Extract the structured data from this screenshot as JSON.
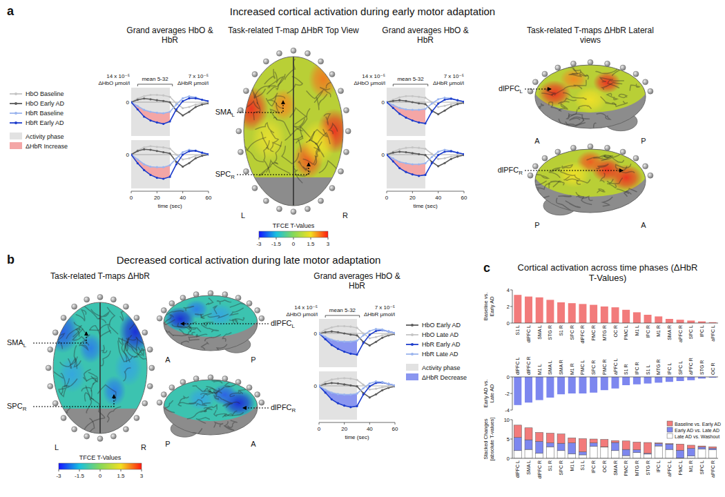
{
  "panels": {
    "a": {
      "letter": "a",
      "title": "Increased cortical activation during early motor adaptation",
      "headings": [
        "Grand averages HbO & HbR",
        "Task-related T-map ΔHbR Top View",
        "Grand averages HbO & HbR",
        "Task-related T-maps ΔHbR Lateral views"
      ],
      "top_view": {
        "labels": [
          {
            "text": "SMA",
            "sub": "L"
          },
          {
            "text": "SPC",
            "sub": "R"
          }
        ],
        "left": "L",
        "right": "R"
      },
      "lateral_views": [
        {
          "label": {
            "text": "dlPFC",
            "sub": "L"
          },
          "front": "A",
          "back": "P"
        },
        {
          "label": {
            "text": "dlPFC",
            "sub": "R"
          },
          "front": "A",
          "back": "P"
        }
      ],
      "colorbar": {
        "label": "TFCE T-Values",
        "range": [
          -3,
          3
        ],
        "ticks": [
          -3,
          -1.5,
          0,
          1.5,
          3
        ]
      }
    },
    "b": {
      "letter": "b",
      "title": "Decreased cortical activation during late motor adaptation",
      "headings": [
        "Task-related T-maps ΔHbR",
        "Grand averages HbO & HbR"
      ],
      "top_view": {
        "labels": [
          {
            "text": "SMA",
            "sub": "L"
          },
          {
            "text": "SPC",
            "sub": "R"
          }
        ],
        "left": "L",
        "right": "R"
      },
      "lateral_views": [
        {
          "label": {
            "text": "dlPFC",
            "sub": "L"
          },
          "front": "A",
          "back": "P"
        },
        {
          "label": {
            "text": "dlPFC",
            "sub": "R"
          },
          "front": "A",
          "back": "P"
        }
      ],
      "colorbar": {
        "label": "TFCE T-Values",
        "range": [
          -3,
          3
        ],
        "ticks": [
          -3,
          -1.5,
          0,
          1.5,
          3
        ]
      }
    },
    "c": {
      "letter": "c",
      "title": "Cortical activation across time phases (ΔHbR T-Values)"
    }
  },
  "chart_data": [
    {
      "type": "line",
      "x": [
        0,
        5,
        10,
        15,
        20,
        25,
        30,
        35,
        40,
        45,
        50,
        55,
        60
      ],
      "xlim": [
        0,
        60
      ],
      "ylim": [
        -14,
        6
      ],
      "yticks": [
        0
      ],
      "y2lim": [
        -7,
        3
      ],
      "ylabel": "14 x 10⁻⁵ ΔHbO μmol/l",
      "y2label": "7 x 10⁻⁵ ΔHbR μmol/l",
      "mean_window": [
        5,
        32
      ],
      "mean_label": "mean 5-32",
      "activity_phase": [
        0,
        30
      ],
      "fill_color": "#f4a6a6",
      "phase_label": "Activity phase",
      "fill_label": "ΔHbR Increase",
      "legend": "left",
      "series": [
        {
          "name": "HbO Baseline",
          "color": "#c4c4c4",
          "values": [
            0,
            1.5,
            2.5,
            3,
            3,
            2.8,
            2.2,
            -0.5,
            -2.5,
            -2,
            -1,
            -0.5,
            0
          ]
        },
        {
          "name": "HbO Early AD",
          "color": "#5a5a5a",
          "values": [
            0,
            1,
            1.5,
            1.2,
            0.8,
            0.5,
            0,
            -3.5,
            -5.5,
            -4,
            -2,
            -1,
            -0.5
          ]
        },
        {
          "name": "HbR Baseline",
          "color": "#9ab4ee",
          "axis": "y2",
          "values": [
            0,
            -0.8,
            -1.6,
            -2,
            -2.2,
            -2.3,
            -2,
            -0.5,
            0.8,
            1.2,
            1,
            0.5,
            0.2
          ]
        },
        {
          "name": "HbR Early AD",
          "color": "#1c3ccc",
          "axis": "y2",
          "values": [
            0,
            -1.5,
            -3,
            -3.8,
            -4.2,
            -4.5,
            -4,
            -1.5,
            0.2,
            0.8,
            0.8,
            0.5,
            0.2
          ]
        }
      ]
    },
    {
      "type": "line",
      "x": [
        0,
        5,
        10,
        15,
        20,
        25,
        30,
        35,
        40,
        45,
        50,
        55,
        60
      ],
      "xlim": [
        0,
        60
      ],
      "xticks": [
        0,
        20,
        40,
        60
      ],
      "xlabel": "time (sec)",
      "ylim": [
        -14,
        6
      ],
      "yticks": [
        0
      ],
      "y2lim": [
        -7,
        3
      ],
      "activity_phase": [
        0,
        30
      ],
      "fill_color": "#f4a6a6",
      "series": [
        {
          "color": "#c4c4c4",
          "values": [
            0,
            1.8,
            3,
            3.5,
            3.2,
            3,
            2.5,
            0,
            -2,
            -1.5,
            -0.5,
            0,
            0
          ]
        },
        {
          "color": "#5a5a5a",
          "values": [
            0,
            1.5,
            2.2,
            2,
            1.5,
            1,
            0.5,
            -3,
            -5,
            -3.5,
            -1.5,
            -0.5,
            0
          ]
        },
        {
          "color": "#9ab4ee",
          "axis": "y2",
          "values": [
            0,
            -1,
            -2,
            -2.5,
            -2.6,
            -2.6,
            -2.2,
            -0.8,
            0.5,
            1,
            0.8,
            0.4,
            0
          ]
        },
        {
          "color": "#1c3ccc",
          "axis": "y2",
          "values": [
            0,
            -1.8,
            -3.2,
            -4.2,
            -4.8,
            -5,
            -4.6,
            -2,
            0,
            0.7,
            0.8,
            0.4,
            0.1
          ]
        }
      ]
    },
    {
      "type": "line",
      "x": [
        0,
        5,
        10,
        15,
        20,
        25,
        30,
        35,
        40,
        45,
        50,
        55,
        60
      ],
      "xlim": [
        0,
        60
      ],
      "ylim": [
        -14,
        6
      ],
      "yticks": [
        0
      ],
      "y2lim": [
        -7,
        3
      ],
      "ylabel": "14 x 10⁻⁵ ΔHbO μmol/l",
      "y2label": "7 x 10⁻⁵ ΔHbR μmol/l",
      "mean_window": [
        5,
        32
      ],
      "mean_label": "mean 5-32",
      "activity_phase": [
        0,
        30
      ],
      "fill_color": "#f4a6a6",
      "series": [
        {
          "color": "#c4c4c4",
          "values": [
            0,
            1,
            2,
            2.5,
            2.5,
            2.2,
            1.8,
            0,
            -2,
            -1.5,
            -0.8,
            -0.3,
            0
          ]
        },
        {
          "color": "#5a5a5a",
          "values": [
            0,
            0.5,
            0.8,
            0.5,
            0,
            -0.5,
            -0.8,
            -3.5,
            -5,
            -3.5,
            -1.8,
            -0.8,
            -0.3
          ]
        },
        {
          "color": "#9ab4ee",
          "axis": "y2",
          "values": [
            0,
            -0.6,
            -1.2,
            -1.5,
            -1.6,
            -1.6,
            -1.4,
            -0.3,
            0.6,
            0.9,
            0.8,
            0.4,
            0.1
          ]
        },
        {
          "color": "#1c3ccc",
          "axis": "y2",
          "values": [
            0,
            -1.2,
            -2.4,
            -3.2,
            -3.8,
            -4.2,
            -4.4,
            -2,
            -0.3,
            0.5,
            0.7,
            0.4,
            0.1
          ]
        }
      ]
    },
    {
      "type": "line",
      "x": [
        0,
        5,
        10,
        15,
        20,
        25,
        30,
        35,
        40,
        45,
        50,
        55,
        60
      ],
      "xlim": [
        0,
        60
      ],
      "xticks": [
        0,
        20,
        40,
        60
      ],
      "xlabel": "time (sec)",
      "ylim": [
        -14,
        6
      ],
      "yticks": [
        0
      ],
      "y2lim": [
        -7,
        3
      ],
      "activity_phase": [
        0,
        30
      ],
      "fill_color": "#f4a6a6",
      "series": [
        {
          "color": "#c4c4c4",
          "values": [
            0,
            1.2,
            2.2,
            2.8,
            3,
            2.8,
            2.4,
            0.3,
            -1.8,
            -1.5,
            -0.8,
            -0.3,
            0
          ]
        },
        {
          "color": "#5a5a5a",
          "values": [
            0,
            0.8,
            1.2,
            1,
            0.6,
            0.2,
            -0.2,
            -3,
            -4.8,
            -3.5,
            -1.8,
            -0.8,
            -0.2
          ]
        },
        {
          "color": "#9ab4ee",
          "axis": "y2",
          "values": [
            0,
            -0.8,
            -1.5,
            -1.8,
            -2,
            -2,
            -1.8,
            -0.5,
            0.6,
            1,
            0.8,
            0.4,
            0.1
          ]
        },
        {
          "color": "#1c3ccc",
          "axis": "y2",
          "values": [
            0,
            -1.4,
            -2.8,
            -3.6,
            -4.1,
            -4.4,
            -4.2,
            -1.8,
            -0.1,
            0.6,
            0.7,
            0.4,
            0.1
          ]
        }
      ]
    },
    {
      "type": "line",
      "x": [
        0,
        5,
        10,
        15,
        20,
        25,
        30,
        35,
        40,
        45,
        50,
        55,
        60
      ],
      "xlim": [
        0,
        60
      ],
      "ylim": [
        -14,
        6
      ],
      "yticks": [
        0
      ],
      "y2lim": [
        -7,
        3
      ],
      "ylabel": "14 x 10⁻⁵ ΔHbO μmol/l",
      "y2label": "7 x 10⁻⁵ ΔHbR μmol/l",
      "mean_window": [
        5,
        32
      ],
      "mean_label": "mean 5-32",
      "activity_phase": [
        0,
        30
      ],
      "fill_color": "#8a96f0",
      "phase_label": "Activity phase",
      "fill_label": "ΔHbR Decrease",
      "legend": "right",
      "series": [
        {
          "name": "HbO Early AD",
          "color": "#5a5a5a",
          "values": [
            0,
            0.5,
            0.8,
            0.5,
            0,
            -0.5,
            -0.8,
            -3.5,
            -5,
            -3.5,
            -1.8,
            -0.8,
            -0.3
          ]
        },
        {
          "name": "HbO Late AD",
          "color": "#c4c4c4",
          "values": [
            0,
            1.5,
            2.5,
            3,
            3,
            2.8,
            2.3,
            0,
            -2,
            -1.5,
            -0.8,
            -0.3,
            0
          ]
        },
        {
          "name": "HbR Early AD",
          "color": "#1c3ccc",
          "axis": "y2",
          "values": [
            0,
            -1.2,
            -2.4,
            -3.2,
            -3.8,
            -4.2,
            -4.4,
            -2,
            -0.3,
            0.5,
            0.7,
            0.4,
            0.1
          ]
        },
        {
          "name": "HbR Late AD",
          "color": "#9ab4ee",
          "axis": "y2",
          "values": [
            0,
            -0.7,
            -1.3,
            -1.6,
            -1.7,
            -1.7,
            -1.5,
            -0.4,
            0.5,
            0.9,
            0.8,
            0.4,
            0.1
          ]
        }
      ]
    },
    {
      "type": "line",
      "x": [
        0,
        5,
        10,
        15,
        20,
        25,
        30,
        35,
        40,
        45,
        50,
        55,
        60
      ],
      "xlim": [
        0,
        60
      ],
      "xticks": [
        0,
        20,
        40,
        60
      ],
      "xlabel": "time (sec)",
      "ylim": [
        -14,
        6
      ],
      "yticks": [
        0
      ],
      "y2lim": [
        -7,
        3
      ],
      "activity_phase": [
        0,
        30
      ],
      "fill_color": "#8a96f0",
      "series": [
        {
          "color": "#5a5a5a",
          "values": [
            0,
            0.8,
            1.2,
            1,
            0.6,
            0.2,
            -0.2,
            -3,
            -4.8,
            -3.5,
            -1.8,
            -0.8,
            -0.2
          ]
        },
        {
          "color": "#c4c4c4",
          "values": [
            0,
            1.6,
            2.6,
            3,
            3.2,
            3,
            2.5,
            0.5,
            -1.5,
            -1.2,
            -0.6,
            -0.2,
            0
          ]
        },
        {
          "color": "#1c3ccc",
          "axis": "y2",
          "values": [
            0,
            -1.4,
            -2.8,
            -3.6,
            -4.1,
            -4.4,
            -4.2,
            -1.8,
            -0.1,
            0.6,
            0.7,
            0.4,
            0.1
          ]
        },
        {
          "color": "#9ab4ee",
          "axis": "y2",
          "values": [
            0,
            -0.8,
            -1.4,
            -1.7,
            -1.8,
            -1.8,
            -1.6,
            -0.5,
            0.5,
            0.9,
            0.8,
            0.4,
            0.1
          ]
        }
      ]
    },
    {
      "type": "bar",
      "ylabel": "Baseline vs. Early AD",
      "color": "#f27b7b",
      "ylim": [
        0,
        4
      ],
      "yticks": [
        0,
        2,
        4
      ],
      "categories": [
        "S1 L",
        "dlPFC L",
        "SMA L",
        "STG R",
        "S1 R",
        "SPC R",
        "dlPFC R",
        "PMC R",
        "MTG R",
        "OC R",
        "PMC L",
        "M1 L",
        "IPC R",
        "M1 R",
        "SMA R",
        "aPFC R",
        "SPC L",
        "IPC L",
        "aPFC L"
      ],
      "values": [
        3.4,
        3.2,
        3.1,
        2.8,
        2.5,
        2.4,
        2.3,
        2.2,
        2.0,
        1.9,
        1.6,
        1.3,
        1.0,
        0.8,
        0.5,
        0.4,
        0.3,
        0.2,
        0.1
      ]
    },
    {
      "type": "bar",
      "ylabel": "Early AD vs. Late AD",
      "color": "#7d87ef",
      "ylim": [
        -4,
        0
      ],
      "yticks": [
        -4,
        -2,
        0
      ],
      "categories": [
        "dlPFC L",
        "dlPFC R",
        "M1 L",
        "SMA L",
        "SMA R",
        "M1 R",
        "PMC L",
        "SPC R",
        "PMC R",
        "aPFC L",
        "S1 R",
        "IPC R",
        "S1 L",
        "MTG R",
        "IPC L",
        "SPC L",
        "aPFC R",
        "STG R",
        "OC R"
      ],
      "values": [
        -3.4,
        -3.1,
        -2.8,
        -2.5,
        -2.1,
        -2.0,
        -2.0,
        -1.9,
        -1.6,
        -1.4,
        -1.0,
        -0.9,
        -0.8,
        -0.7,
        -0.6,
        -0.5,
        -0.4,
        -0.2,
        -0.1
      ]
    },
    {
      "type": "bar",
      "stacked": true,
      "legend": "upper right",
      "ylabel": "Stacked Changes [absolute T-values]",
      "ylim": [
        0,
        10
      ],
      "yticks": [
        0,
        5,
        10
      ],
      "categories": [
        "dlPFC L",
        "SMA L",
        "dlPFC R",
        "S1 R",
        "SPC R",
        "M1 L",
        "S1 L",
        "IPC R",
        "OC R",
        "SMA R",
        "PMC R",
        "MTG R",
        "STG R",
        "IPC L",
        "aPFC L",
        "PMC L",
        "M1 R",
        "SPC L",
        "aPFC R"
      ],
      "series": [
        {
          "name": "Late AD vs. Washout",
          "color": "#ffffff",
          "values": [
            2.0,
            2.3,
            1.3,
            3.0,
            2.0,
            1.2,
            0.9,
            3.1,
            2.9,
            2.0,
            0.7,
            1.5,
            1.1,
            3.2,
            2.3,
            0.1,
            0.6,
            2.4,
            2.2
          ]
        },
        {
          "name": "Early AD vs. Late AD",
          "color": "#7d87ef",
          "values": [
            3.4,
            2.5,
            3.1,
            1.0,
            1.9,
            2.8,
            0.8,
            0.9,
            0.1,
            2.1,
            1.6,
            0.7,
            0.2,
            0.6,
            1.4,
            2.0,
            2.0,
            0.5,
            0.4
          ]
        },
        {
          "name": "Baseline vs. Early AD",
          "color": "#f27b7b",
          "values": [
            3.2,
            3.1,
            2.3,
            2.5,
            2.4,
            1.3,
            3.4,
            1.0,
            1.9,
            0.5,
            2.2,
            2.0,
            2.8,
            0.2,
            0.1,
            1.6,
            0.8,
            0.3,
            0.4
          ]
        }
      ]
    }
  ]
}
